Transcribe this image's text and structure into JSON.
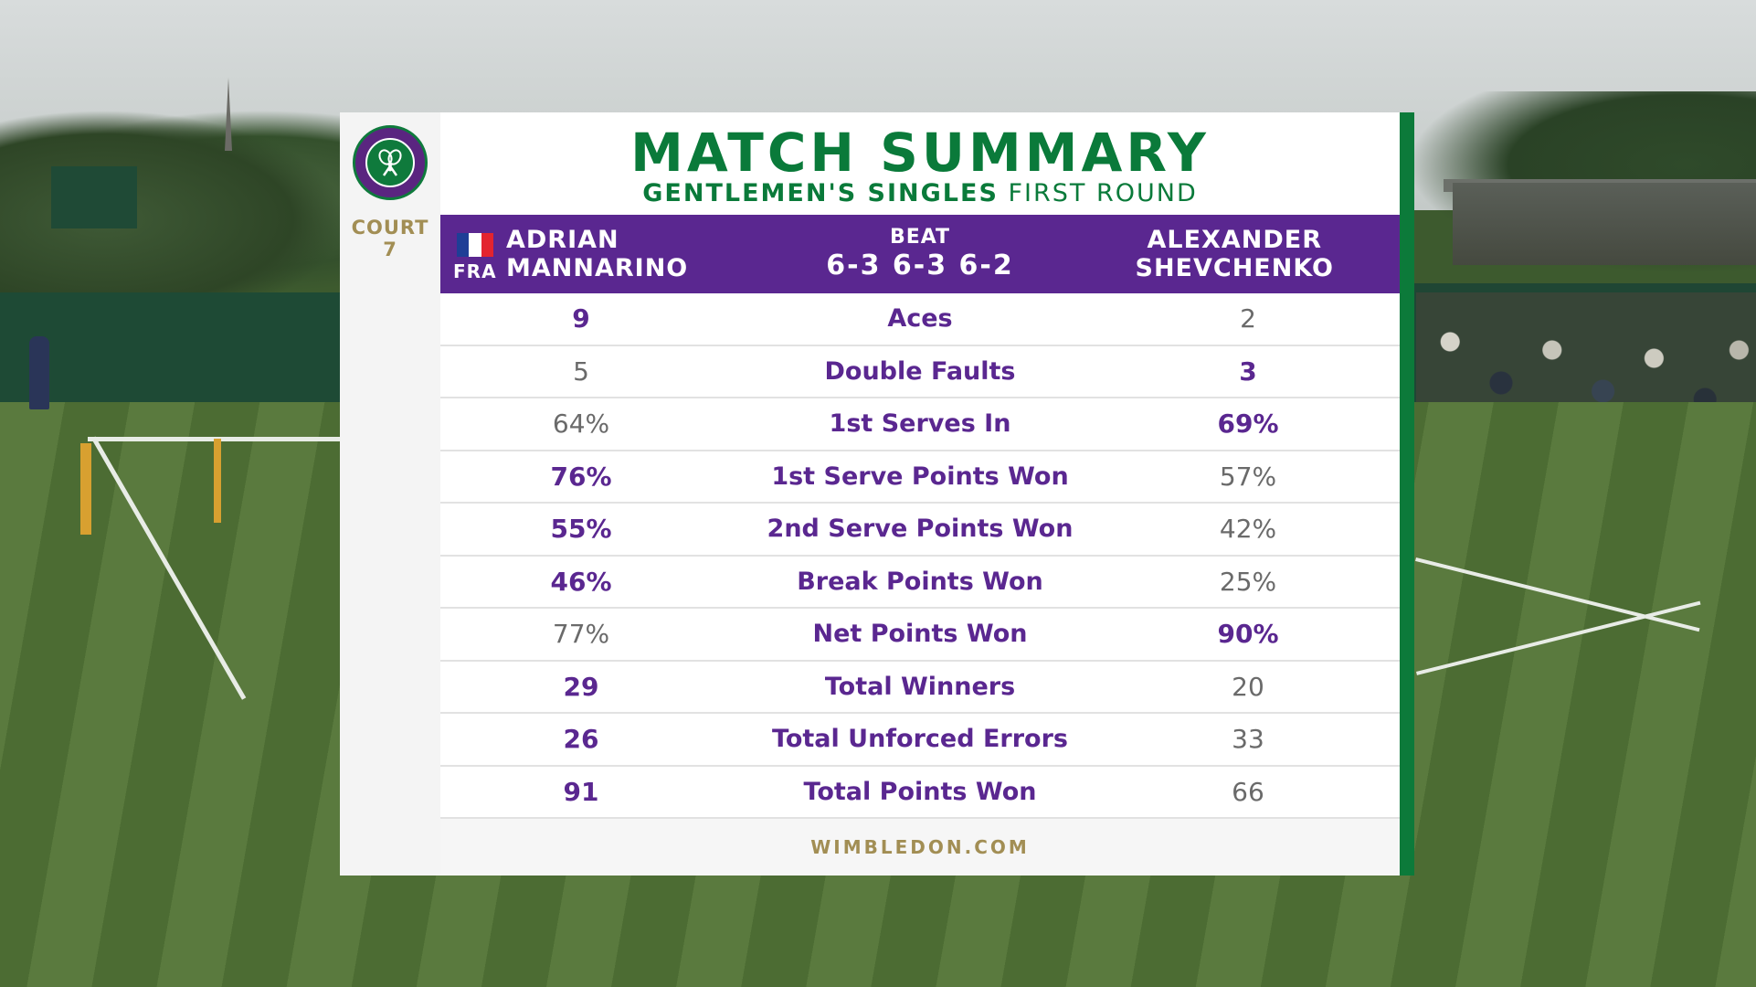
{
  "panel": {
    "title": "MATCH SUMMARY",
    "subtitle_bold": "GENTLEMEN'S SINGLES",
    "subtitle_light": "FIRST ROUND",
    "court": {
      "line1": "COURT",
      "line2": "7"
    },
    "logo_icon": "wimbledon-logo",
    "colors": {
      "purple": "#5a2790",
      "green": "#0a7a3a",
      "gold": "#a28e54"
    },
    "footer": "WIMBLEDON.COM"
  },
  "match": {
    "player1": {
      "first": "ADRIAN",
      "last": "MANNARINO",
      "country": "FRA",
      "flag_icon": "france-flag-icon"
    },
    "result_word": "BEAT",
    "score": "6-3 6-3 6-2",
    "player2": {
      "first": "ALEXANDER",
      "last": "SHEVCHENKO"
    }
  },
  "stats": [
    {
      "label": "Aces",
      "p1": "9",
      "p2": "2",
      "leader": "p1"
    },
    {
      "label": "Double Faults",
      "p1": "5",
      "p2": "3",
      "leader": "p2"
    },
    {
      "label": "1st Serves In",
      "p1": "64%",
      "p2": "69%",
      "leader": "p2"
    },
    {
      "label": "1st Serve Points Won",
      "p1": "76%",
      "p2": "57%",
      "leader": "p1"
    },
    {
      "label": "2nd Serve Points Won",
      "p1": "55%",
      "p2": "42%",
      "leader": "p1"
    },
    {
      "label": "Break Points Won",
      "p1": "46%",
      "p2": "25%",
      "leader": "p1"
    },
    {
      "label": "Net Points Won",
      "p1": "77%",
      "p2": "90%",
      "leader": "p2"
    },
    {
      "label": "Total Winners",
      "p1": "29",
      "p2": "20",
      "leader": "p1"
    },
    {
      "label": "Total Unforced Errors",
      "p1": "26",
      "p2": "33",
      "leader": "p1"
    },
    {
      "label": "Total Points Won",
      "p1": "91",
      "p2": "66",
      "leader": "p1"
    }
  ]
}
